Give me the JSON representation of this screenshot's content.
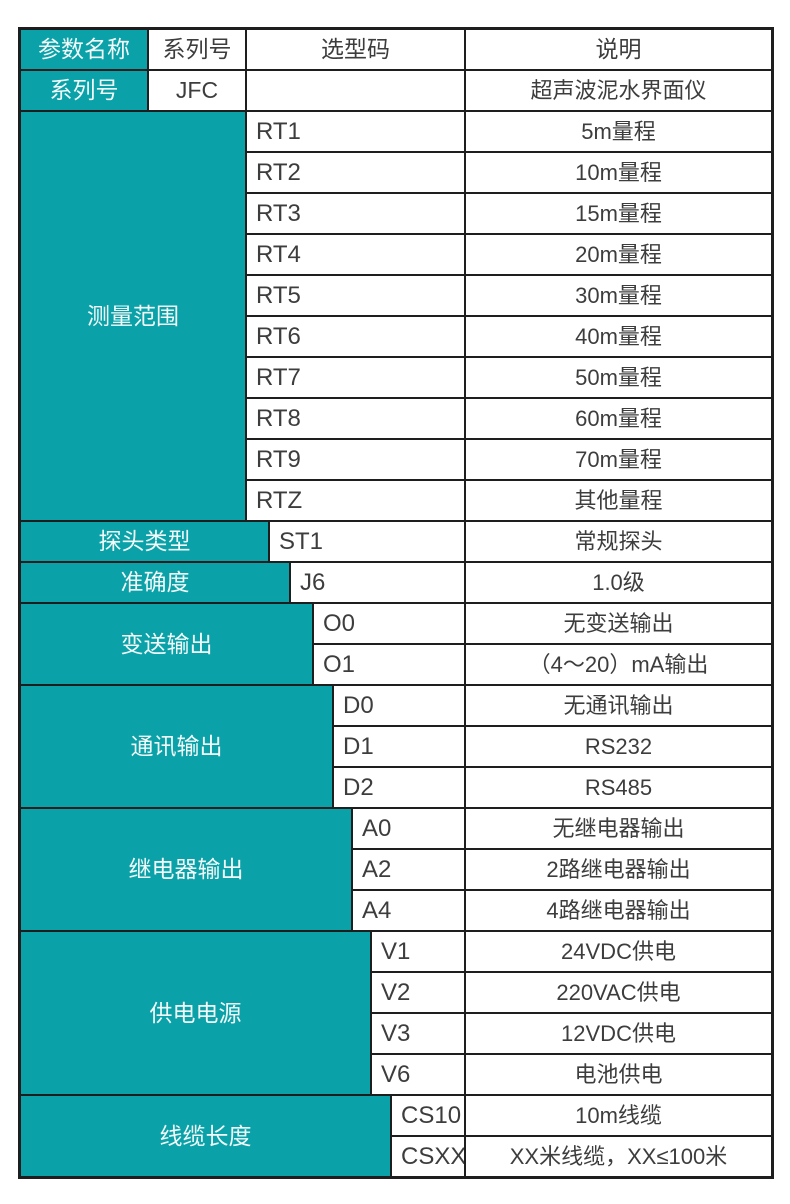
{
  "table": {
    "colors": {
      "accent": "#0aa2a8",
      "border": "#1e1e1e",
      "text_dark": "#3d3d3d",
      "text_light": "#f2fafa",
      "background": "#ffffff"
    },
    "header": {
      "param_name": "参数名称",
      "series_no": "系列号",
      "selection_code": "选型码",
      "description": "说明"
    },
    "series_row": {
      "label": "系列号",
      "code": "JFC",
      "selection_code": "",
      "description": "超声波泥水界面仪"
    },
    "sections": [
      {
        "label": "测量范围",
        "rows": [
          {
            "code": "RT1",
            "desc": "5m量程"
          },
          {
            "code": "RT2",
            "desc": "10m量程"
          },
          {
            "code": "RT3",
            "desc": "15m量程"
          },
          {
            "code": "RT4",
            "desc": "20m量程"
          },
          {
            "code": "RT5",
            "desc": "30m量程"
          },
          {
            "code": "RT6",
            "desc": "40m量程"
          },
          {
            "code": "RT7",
            "desc": "50m量程"
          },
          {
            "code": "RT8",
            "desc": "60m量程"
          },
          {
            "code": "RT9",
            "desc": "70m量程"
          },
          {
            "code": "RTZ",
            "desc": "其他量程"
          }
        ]
      },
      {
        "label": "探头类型",
        "rows": [
          {
            "code": "ST1",
            "desc": "常规探头"
          }
        ]
      },
      {
        "label": "准确度",
        "rows": [
          {
            "code": "J6",
            "desc": "1.0级"
          }
        ]
      },
      {
        "label": "变送输出",
        "rows": [
          {
            "code": "O0",
            "desc": "无变送输出"
          },
          {
            "code": "O1",
            "desc": "（4～20）mA输出"
          }
        ]
      },
      {
        "label": "通讯输出",
        "rows": [
          {
            "code": "D0",
            "desc": "无通讯输出"
          },
          {
            "code": "D1",
            "desc": "RS232"
          },
          {
            "code": "D2",
            "desc": "RS485"
          }
        ]
      },
      {
        "label": "继电器输出",
        "rows": [
          {
            "code": "A0",
            "desc": "无继电器输出"
          },
          {
            "code": "A2",
            "desc": "2路继电器输出"
          },
          {
            "code": "A4",
            "desc": "4路继电器输出"
          }
        ]
      },
      {
        "label": "供电电源",
        "rows": [
          {
            "code": "V1",
            "desc": "24VDC供电"
          },
          {
            "code": "V2",
            "desc": "220VAC供电"
          },
          {
            "code": "V3",
            "desc": "12VDC供电"
          },
          {
            "code": "V6",
            "desc": "电池供电"
          }
        ]
      },
      {
        "label": "线缆长度",
        "rows": [
          {
            "code": "CS10",
            "desc": "10m线缆"
          },
          {
            "code": "CSXX",
            "desc": "XX米线缆，XX≤100米"
          }
        ]
      }
    ]
  }
}
